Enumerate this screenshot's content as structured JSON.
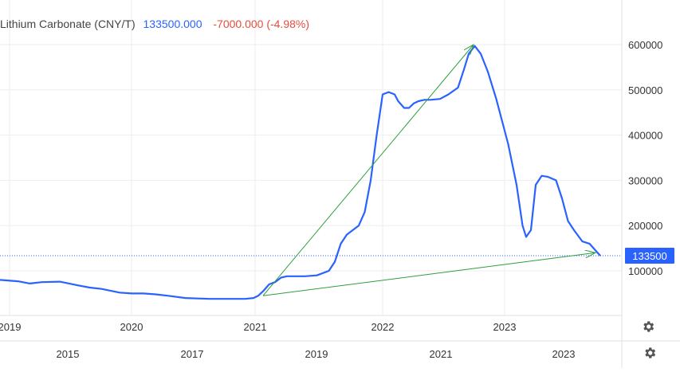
{
  "legend": {
    "name": "Lithium Carbonate (CNY/T)",
    "last": "133500.000",
    "change": "-7000.000 (-4.98%)"
  },
  "colors": {
    "line": "#2962ff",
    "change_negative": "#e74c3c",
    "arrow": "#2e9e3e",
    "price_tag_bg": "#2962ff",
    "grid": "#eeeeee",
    "axis_text": "#333333"
  },
  "icons": [
    "gear-icon",
    "gear-icon"
  ],
  "chart_data": {
    "type": "line",
    "title": "",
    "xlabel": "",
    "ylabel": "",
    "y_axis_position": "right",
    "y_ticks": [
      100000,
      200000,
      300000,
      400000,
      500000,
      600000
    ],
    "y_tick_labels": [
      "100000",
      "200000",
      "300000",
      "400000",
      "500000",
      "600000"
    ],
    "ylim": [
      0,
      690000
    ],
    "x_axis_upper_labels": [
      "2019",
      "2020",
      "2021",
      "2022",
      "2023"
    ],
    "x_axis_lower_labels": [
      "2015",
      "2017",
      "2019",
      "2021",
      "2023"
    ],
    "x_range_years": [
      2018.8,
      2024.0
    ],
    "grid": true,
    "last_price_label": "133500",
    "last_price_value": 133500,
    "series": [
      {
        "x": [
          2018.8,
          2018.95,
          2019.05,
          2019.15,
          2019.3,
          2019.45,
          2019.55,
          2019.65,
          2019.8,
          2019.9,
          2020.0,
          2020.1,
          2020.2,
          2020.35,
          2020.55,
          2020.75,
          2020.85,
          2020.92,
          2020.96,
          2021.0,
          2021.05,
          2021.1,
          2021.15,
          2021.2,
          2021.28,
          2021.35,
          2021.45,
          2021.55,
          2021.6,
          2021.65,
          2021.7,
          2021.75,
          2021.8,
          2021.85,
          2021.9,
          2021.95,
          2022.0,
          2022.05,
          2022.1,
          2022.13,
          2022.18,
          2022.22,
          2022.26,
          2022.3,
          2022.35,
          2022.4,
          2022.48,
          2022.55,
          2022.63,
          2022.68,
          2022.72,
          2022.77,
          2022.82,
          2022.88,
          2022.95,
          2023.05,
          2023.12,
          2023.17,
          2023.2,
          2023.24,
          2023.28,
          2023.33,
          2023.38,
          2023.45,
          2023.5,
          2023.55,
          2023.6,
          2023.67,
          2023.73,
          2023.78,
          2023.82
        ],
        "values": [
          80000,
          77000,
          72000,
          75000,
          76000,
          68000,
          63000,
          60000,
          52000,
          50000,
          50000,
          48000,
          45000,
          40000,
          38000,
          38000,
          38000,
          40000,
          45000,
          55000,
          70000,
          75000,
          85000,
          88000,
          88000,
          88000,
          90000,
          100000,
          120000,
          160000,
          180000,
          190000,
          200000,
          230000,
          300000,
          400000,
          490000,
          495000,
          490000,
          475000,
          460000,
          460000,
          470000,
          475000,
          478000,
          478000,
          480000,
          490000,
          505000,
          545000,
          580000,
          597000,
          580000,
          540000,
          480000,
          380000,
          290000,
          200000,
          175000,
          190000,
          290000,
          310000,
          308000,
          300000,
          260000,
          210000,
          190000,
          165000,
          160000,
          145000,
          133500
        ]
      }
    ],
    "annotations": [
      {
        "type": "arrow",
        "from": [
          2021.0,
          45000
        ],
        "to": [
          2022.76,
          600000
        ]
      },
      {
        "type": "arrow",
        "from": [
          2021.0,
          45000
        ],
        "to": [
          2023.78,
          140000
        ]
      }
    ]
  }
}
